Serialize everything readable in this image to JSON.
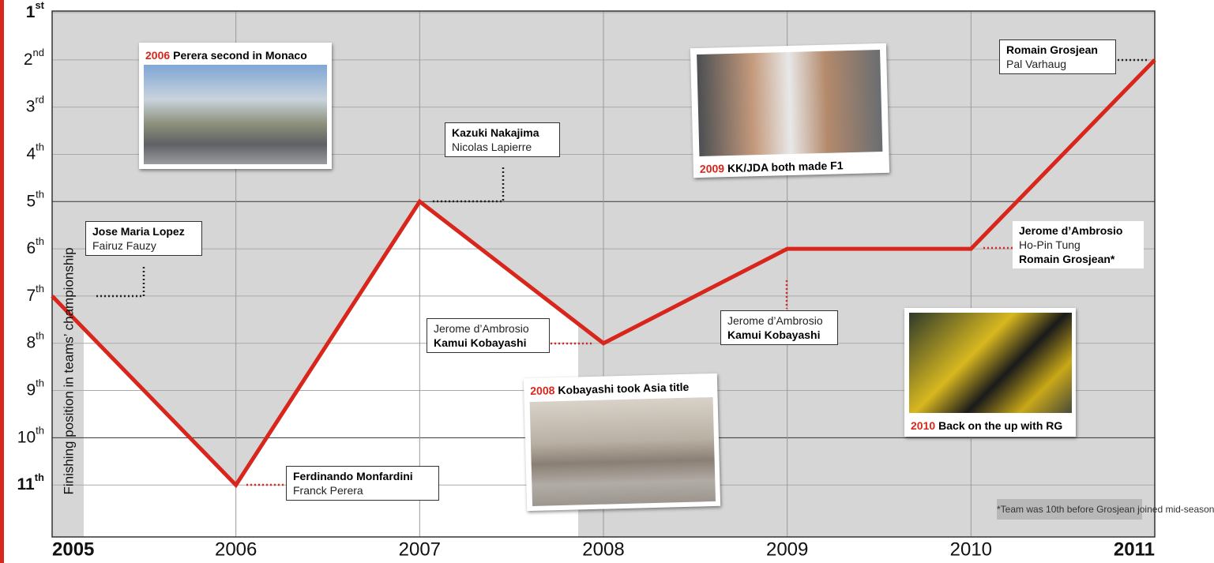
{
  "chart_data": {
    "type": "line",
    "x": [
      2005,
      2006,
      2007,
      2008,
      2009,
      2010,
      2011
    ],
    "values": [
      7,
      11,
      5,
      8,
      6,
      6,
      2
    ],
    "color": "#d9261c",
    "xlim": [
      2005,
      2011
    ],
    "xticks": [
      2005,
      2006,
      2007,
      2008,
      2009,
      2010,
      2011
    ],
    "ylim": [
      1,
      12.1
    ],
    "yticks": [
      {
        "value": 1,
        "label": "1st"
      },
      {
        "value": 2,
        "label": "2nd"
      },
      {
        "value": 3,
        "label": "3rd"
      },
      {
        "value": 4,
        "label": "4th"
      },
      {
        "value": 5,
        "label": "5th"
      },
      {
        "value": 6,
        "label": "6th"
      },
      {
        "value": 7,
        "label": "7th"
      },
      {
        "value": 8,
        "label": "8th"
      },
      {
        "value": 9,
        "label": "9th"
      },
      {
        "value": 10,
        "label": "10th"
      },
      {
        "value": 11,
        "label": "11th"
      }
    ],
    "y_axis_label": "Finishing position in teams’ championship",
    "grid": true
  },
  "annotations": [
    {
      "lines": [
        "Jose Maria Lopez",
        "Fairuz Fauzy"
      ]
    },
    {
      "lines": [
        "Ferdinando Monfardini",
        "Franck Perera"
      ]
    },
    {
      "lines": [
        "Kazuki Nakajima",
        "Nicolas Lapierre"
      ]
    },
    {
      "lines": [
        "Jerome d’Ambrosio",
        "Kamui Kobayashi"
      ]
    },
    {
      "lines": [
        "Jerome d’Ambrosio",
        "Kamui Kobayashi"
      ]
    },
    {
      "lines": [
        "Jerome d’Ambrosio",
        "Ho-Pin Tung",
        "Romain Grosjean*"
      ]
    },
    {
      "lines": [
        "Romain Grosjean",
        "Pal Varhaug"
      ]
    }
  ],
  "photos": [
    {
      "year": "2006",
      "caption": "Perera second in Monaco"
    },
    {
      "year": "2009",
      "caption": "KK/JDA both made F1"
    },
    {
      "year": "2008",
      "caption": "Kobayashi took Asia title"
    },
    {
      "year": "2010",
      "caption": "Back on the up with RG"
    }
  ],
  "note": "*Team was 10th before Grosjean joined mid-season"
}
